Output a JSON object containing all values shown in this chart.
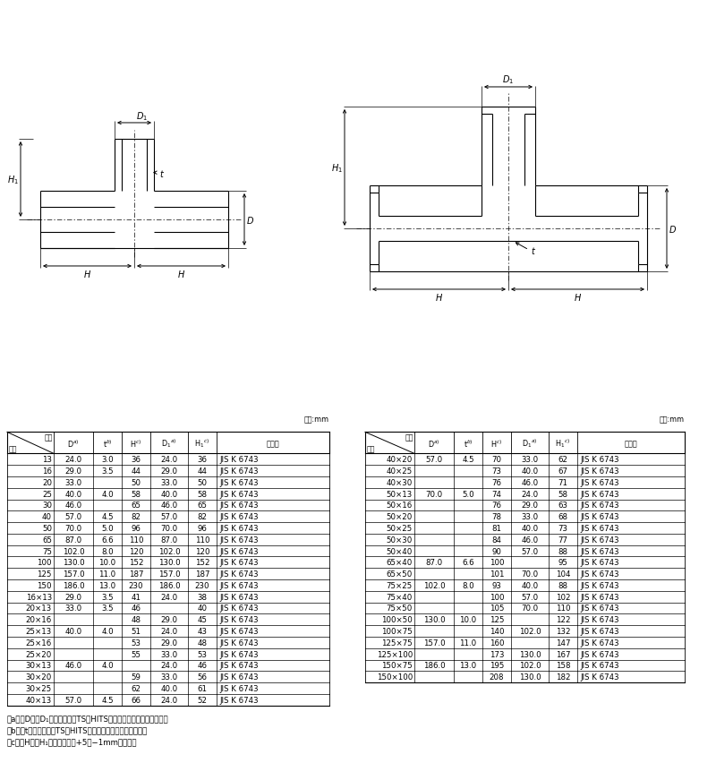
{
  "table1_rows": [
    [
      "13",
      "24.0",
      "3.0",
      "36",
      "24.0",
      "36",
      "JIS K 6743"
    ],
    [
      "16",
      "29.0",
      "3.5",
      "44",
      "29.0",
      "44",
      "JIS K 6743"
    ],
    [
      "20",
      "33.0",
      "",
      "50",
      "33.0",
      "50",
      "JIS K 6743"
    ],
    [
      "25",
      "40.0",
      "4.0",
      "58",
      "40.0",
      "58",
      "JIS K 6743"
    ],
    [
      "30",
      "46.0",
      "",
      "65",
      "46.0",
      "65",
      "JIS K 6743"
    ],
    [
      "40",
      "57.0",
      "4.5",
      "82",
      "57.0",
      "82",
      "JIS K 6743"
    ],
    [
      "50",
      "70.0",
      "5.0",
      "96",
      "70.0",
      "96",
      "JIS K 6743"
    ],
    [
      "65",
      "87.0",
      "6.6",
      "110",
      "87.0",
      "110",
      "JIS K 6743"
    ],
    [
      "75",
      "102.0",
      "8.0",
      "120",
      "102.0",
      "120",
      "JIS K 6743"
    ],
    [
      "100",
      "130.0",
      "10.0",
      "152",
      "130.0",
      "152",
      "JIS K 6743"
    ],
    [
      "125",
      "157.0",
      "11.0",
      "187",
      "157.0",
      "187",
      "JIS K 6743"
    ],
    [
      "150",
      "186.0",
      "13.0",
      "230",
      "186.0",
      "230",
      "JIS K 6743"
    ],
    [
      "16×13",
      "29.0",
      "3.5",
      "41",
      "24.0",
      "38",
      "JIS K 6743"
    ],
    [
      "20×13",
      "33.0",
      "3.5",
      "46",
      "",
      "40",
      "JIS K 6743"
    ],
    [
      "20×16",
      "",
      "",
      "48",
      "29.0",
      "45",
      "JIS K 6743"
    ],
    [
      "25×13",
      "40.0",
      "4.0",
      "51",
      "24.0",
      "43",
      "JIS K 6743"
    ],
    [
      "25×16",
      "",
      "",
      "53",
      "29.0",
      "48",
      "JIS K 6743"
    ],
    [
      "25×20",
      "",
      "",
      "55",
      "33.0",
      "53",
      "JIS K 6743"
    ],
    [
      "30×13",
      "46.0",
      "4.0",
      "",
      "24.0",
      "46",
      "JIS K 6743"
    ],
    [
      "30×20",
      "",
      "",
      "59",
      "33.0",
      "56",
      "JIS K 6743"
    ],
    [
      "30×25",
      "",
      "",
      "62",
      "40.0",
      "61",
      "JIS K 6743"
    ],
    [
      "40×13",
      "57.0",
      "4.5",
      "66",
      "24.0",
      "52",
      "JIS K 6743"
    ]
  ],
  "table2_rows": [
    [
      "40×20",
      "57.0",
      "4.5",
      "70",
      "33.0",
      "62",
      "JIS K 6743"
    ],
    [
      "40×25",
      "",
      "",
      "73",
      "40.0",
      "67",
      "JIS K 6743"
    ],
    [
      "40×30",
      "",
      "",
      "76",
      "46.0",
      "71",
      "JIS K 6743"
    ],
    [
      "50×13",
      "70.0",
      "5.0",
      "74",
      "24.0",
      "58",
      "JIS K 6743"
    ],
    [
      "50×16",
      "",
      "",
      "76",
      "29.0",
      "63",
      "JIS K 6743"
    ],
    [
      "50×20",
      "",
      "",
      "78",
      "33.0",
      "68",
      "JIS K 6743"
    ],
    [
      "50×25",
      "",
      "",
      "81",
      "40.0",
      "73",
      "JIS K 6743"
    ],
    [
      "50×30",
      "",
      "",
      "84",
      "46.0",
      "77",
      "JIS K 6743"
    ],
    [
      "50×40",
      "",
      "",
      "90",
      "57.0",
      "88",
      "JIS K 6743"
    ],
    [
      "65×40",
      "87.0",
      "6.6",
      "100",
      "",
      "95",
      "JIS K 6743"
    ],
    [
      "65×50",
      "",
      "",
      "101",
      "70.0",
      "104",
      "JIS K 6743"
    ],
    [
      "75×25",
      "102.0",
      "8.0",
      "93",
      "40.0",
      "88",
      "JIS K 6743"
    ],
    [
      "75×40",
      "",
      "",
      "100",
      "57.0",
      "102",
      "JIS K 6743"
    ],
    [
      "75×50",
      "",
      "",
      "105",
      "70.0",
      "110",
      "JIS K 6743"
    ],
    [
      "100×50",
      "130.0",
      "10.0",
      "125",
      "",
      "122",
      "JIS K 6743"
    ],
    [
      "100×75",
      "",
      "",
      "140",
      "102.0",
      "132",
      "JIS K 6743"
    ],
    [
      "125×75",
      "157.0",
      "11.0",
      "160",
      "",
      "147",
      "JIS K 6743"
    ],
    [
      "125×100",
      "",
      "",
      "173",
      "130.0",
      "167",
      "JIS K 6743"
    ],
    [
      "150×75",
      "186.0",
      "13.0",
      "195",
      "102.0",
      "158",
      "JIS K 6743"
    ],
    [
      "150×100",
      "",
      "",
      "208",
      "130.0",
      "182",
      "JIS K 6743"
    ]
  ],
  "note_a": "注a）　D及びD₁の許容差は、TS・HITS継手受口共通寸法図による。",
  "note_b": "注b）　tの許容差は、TS・HITS継手受口共通寸法図による。",
  "note_c": "注c）　H及びH₁の許容差は、+5／−1mmとする。",
  "bg_color": "#ffffff",
  "line_color": "#000000"
}
